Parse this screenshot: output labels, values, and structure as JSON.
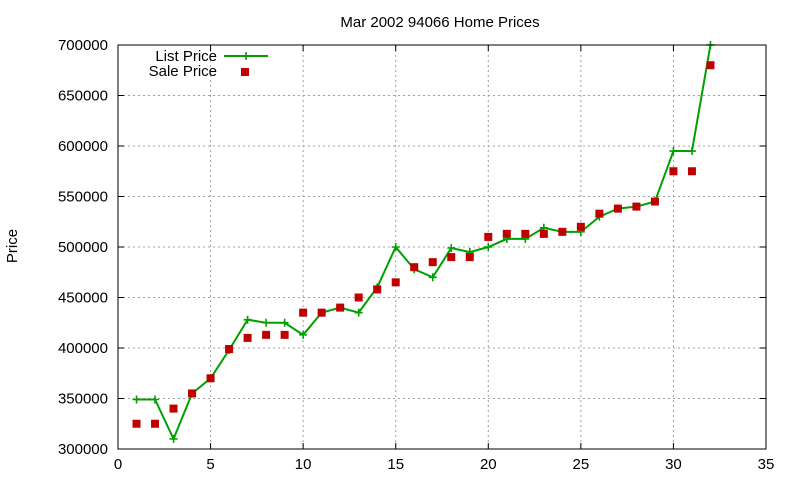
{
  "chart_data": {
    "type": "line",
    "title": "Mar 2002 94066 Home Prices",
    "xlabel": "",
    "ylabel": "Price",
    "xlim": [
      0,
      35
    ],
    "ylim": [
      300000,
      700000
    ],
    "xticks": [
      0,
      5,
      10,
      15,
      20,
      25,
      30,
      35
    ],
    "yticks": [
      300000,
      350000,
      400000,
      450000,
      500000,
      550000,
      600000,
      650000,
      700000
    ],
    "grid": true,
    "legend": "top-left",
    "series": [
      {
        "name": "List Price",
        "style": "line-with-plus-markers",
        "color": "#00a000",
        "x": [
          1,
          2,
          3,
          4,
          5,
          6,
          7,
          8,
          9,
          10,
          11,
          12,
          13,
          14,
          15,
          16,
          17,
          18,
          19,
          20,
          21,
          22,
          23,
          24,
          25,
          26,
          27,
          28,
          29,
          30,
          31,
          32
        ],
        "y": [
          349000,
          349000,
          310000,
          355000,
          370000,
          398000,
          428000,
          425000,
          425000,
          413000,
          435000,
          440000,
          435000,
          460000,
          500000,
          478000,
          470000,
          499000,
          495000,
          500000,
          508000,
          508000,
          519000,
          515000,
          515000,
          530000,
          538000,
          540000,
          545000,
          595000,
          595000,
          700000
        ]
      },
      {
        "name": "Sale Price",
        "style": "square-markers",
        "color": "#c00000",
        "x": [
          1,
          2,
          3,
          4,
          5,
          6,
          7,
          8,
          9,
          10,
          11,
          12,
          13,
          14,
          15,
          16,
          17,
          18,
          19,
          20,
          21,
          22,
          23,
          24,
          25,
          26,
          27,
          28,
          29,
          30,
          31,
          32
        ],
        "y": [
          325000,
          325000,
          340000,
          355000,
          370000,
          399000,
          410000,
          413000,
          413000,
          435000,
          435000,
          440000,
          450000,
          458000,
          465000,
          480000,
          485000,
          490000,
          490000,
          510000,
          513000,
          513000,
          513000,
          515000,
          520000,
          533000,
          538000,
          540000,
          545000,
          575000,
          575000,
          680000
        ]
      }
    ]
  }
}
